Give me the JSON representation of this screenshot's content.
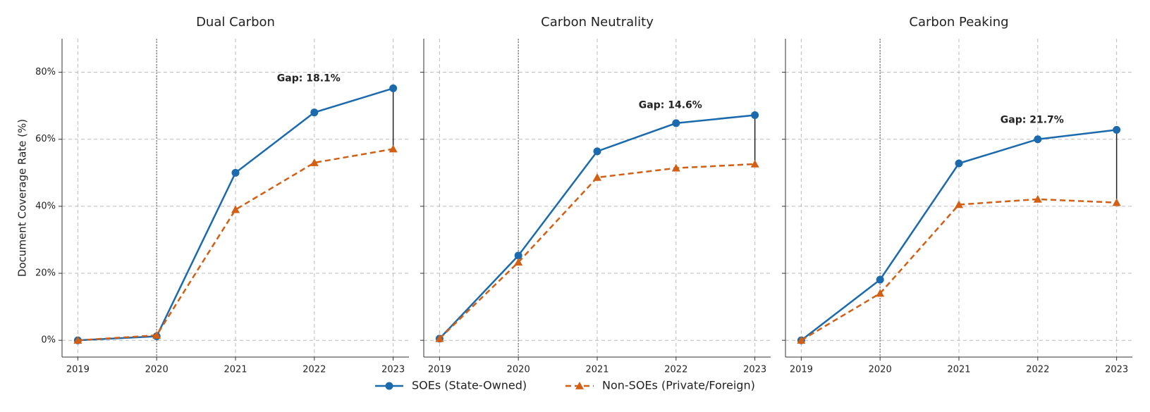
{
  "chart_data": [
    {
      "type": "line",
      "title": "Dual Carbon",
      "y_label": "Document Coverage Rate (%)",
      "annotation": "Gap: 18.1%",
      "x": [
        2019,
        2020,
        2021,
        2022,
        2023
      ],
      "xlim": [
        2018.8,
        2023.2
      ],
      "xticks": [
        2019,
        2020,
        2021,
        2022,
        2023
      ],
      "ylim": [
        -5,
        90
      ],
      "yticks": [
        {
          "value": 0,
          "label": "0%"
        },
        {
          "value": 20,
          "label": "20%"
        },
        {
          "value": 40,
          "label": "40%"
        },
        {
          "value": 60,
          "label": "60%"
        },
        {
          "value": 80,
          "label": "80%"
        }
      ],
      "grid": true,
      "series": [
        {
          "name": "SOEs (State-Owned)",
          "color": "#1a6aad",
          "values": [
            0,
            1.2,
            50,
            68,
            75.2
          ]
        },
        {
          "name": "Non-SOEs (Private/Foreign)",
          "color": "#d35f14",
          "values": [
            0,
            1.5,
            39,
            53,
            57.1
          ]
        }
      ]
    },
    {
      "type": "line",
      "title": "Carbon Neutrality",
      "annotation": "Gap: 14.6%",
      "x": [
        2019,
        2020,
        2021,
        2022,
        2023
      ],
      "xlim": [
        2018.8,
        2023.2
      ],
      "xticks": [
        2019,
        2020,
        2021,
        2022,
        2023
      ],
      "ylim": [
        -5,
        90
      ],
      "grid": true,
      "series": [
        {
          "color": "#1a6aad",
          "values": [
            0.5,
            25.3,
            56.4,
            64.8,
            67.2
          ]
        },
        {
          "color": "#d35f14",
          "values": [
            0.5,
            23.3,
            48.6,
            51.4,
            52.6
          ]
        }
      ]
    },
    {
      "type": "line",
      "title": "Carbon Peaking",
      "annotation": "Gap: 21.7%",
      "x": [
        2019,
        2020,
        2021,
        2022,
        2023
      ],
      "xlim": [
        2018.8,
        2023.2
      ],
      "xticks": [
        2019,
        2020,
        2021,
        2022,
        2023
      ],
      "ylim": [
        -5,
        90
      ],
      "grid": true,
      "series": [
        {
          "color": "#1a6aad",
          "values": [
            0,
            18.1,
            52.8,
            60,
            62.8
          ]
        },
        {
          "color": "#d35f14",
          "values": [
            0,
            14,
            40.5,
            42.1,
            41.1
          ]
        }
      ]
    }
  ]
}
